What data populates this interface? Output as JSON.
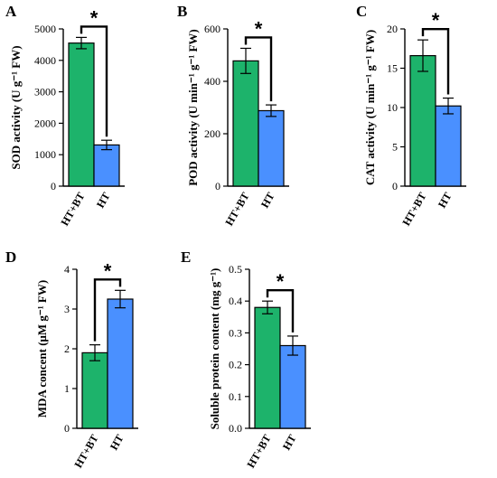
{
  "colors": {
    "treated": "#1DB36B",
    "control": "#4A90FF",
    "ink": "#000000"
  },
  "chart_data": [
    {
      "id": "A",
      "type": "bar",
      "panel_label": "A",
      "categories": [
        "HT+BT",
        "HT"
      ],
      "values": [
        4550,
        1310
      ],
      "errors": [
        180,
        150
      ],
      "ylabel": "SOD activity (U g⁻¹ FW)",
      "ylim": [
        0,
        5000
      ],
      "yticks": [
        0,
        1000,
        2000,
        3000,
        4000,
        5000
      ],
      "significance": "*"
    },
    {
      "id": "B",
      "type": "bar",
      "panel_label": "B",
      "categories": [
        "HT+BT",
        "HT"
      ],
      "values": [
        478,
        288
      ],
      "errors": [
        48,
        22
      ],
      "ylabel": "POD activity (U min⁻¹ g⁻¹ FW)",
      "ylim": [
        0,
        600
      ],
      "yticks": [
        0,
        200,
        400,
        600
      ],
      "significance": "*"
    },
    {
      "id": "C",
      "type": "bar",
      "panel_label": "C",
      "categories": [
        "HT+BT",
        "HT"
      ],
      "values": [
        16.6,
        10.2
      ],
      "errors": [
        2.0,
        1.0
      ],
      "ylabel": "CAT activity (U min⁻¹ g⁻¹ FW)",
      "ylim": [
        0,
        20
      ],
      "yticks": [
        0,
        5,
        10,
        15,
        20
      ],
      "significance": "*"
    },
    {
      "id": "D",
      "type": "bar",
      "panel_label": "D",
      "categories": [
        "HT+BT",
        "HT"
      ],
      "values": [
        1.9,
        3.25
      ],
      "errors": [
        0.2,
        0.22
      ],
      "ylabel": "MDA concent (μM g⁻¹ FW)",
      "ylim": [
        0,
        4
      ],
      "yticks": [
        0,
        1,
        2,
        3,
        4
      ],
      "significance": "*"
    },
    {
      "id": "E",
      "type": "bar",
      "panel_label": "E",
      "categories": [
        "HT+BT",
        "HT"
      ],
      "values": [
        0.38,
        0.26
      ],
      "errors": [
        0.02,
        0.03
      ],
      "ylabel": "Soluble protein content (mg g⁻¹)",
      "ylim": [
        0,
        0.5
      ],
      "yticks": [
        0.0,
        0.1,
        0.2,
        0.3,
        0.4,
        0.5
      ],
      "significance": "*"
    }
  ]
}
